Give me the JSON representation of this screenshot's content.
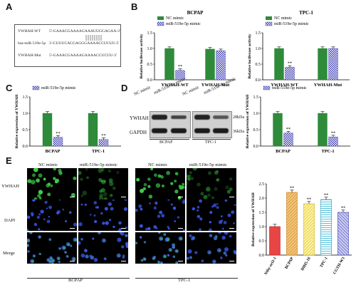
{
  "panels": {
    "A": "A",
    "B": "B",
    "C": "C",
    "D": "D",
    "E": "E"
  },
  "seq": {
    "rows": [
      {
        "label": "YWHAH-WT",
        "seq": "5'-GAAACGAAAAGAAAUUGGAGAA-3'"
      },
      {
        "label": "hsa-miR-519e-5p",
        "seq": "3'-CUUUCACGAGGGAAAACCUCUU-5'"
      },
      {
        "label": "YWHAH-Mut",
        "seq": "5'-GAAACGAAAAGAAAACCUCUU-3'"
      }
    ]
  },
  "legend": {
    "nc": "NC mimic",
    "mir": "miR-519e-5p mimic"
  },
  "colors": {
    "nc": "#2e8b3a",
    "mir": "#3a3ab0"
  },
  "chart_data": [
    {
      "id": "B1",
      "type": "bar",
      "title": "BCPAP",
      "ylabel": "Relative luciferase activity",
      "ylim": [
        0,
        1.5
      ],
      "yticks": [
        "0.0",
        "0.5",
        "1.0",
        "1.5"
      ],
      "categories": [
        "YWHAH-WT",
        "YWHAH-Mut"
      ],
      "series": [
        {
          "name": "NC mimic",
          "values": [
            1.0,
            0.98
          ]
        },
        {
          "name": "miR-519e-5p mimic",
          "values": [
            0.3,
            0.93
          ]
        }
      ],
      "sig": [
        "**",
        ""
      ]
    },
    {
      "id": "B2",
      "type": "bar",
      "title": "TPC-1",
      "ylabel": "Relative luciferase activity",
      "ylim": [
        0,
        1.5
      ],
      "yticks": [
        "0.0",
        "0.5",
        "1.0",
        "1.5"
      ],
      "categories": [
        "YWHAH-WT",
        "YWHAH-Mut"
      ],
      "series": [
        {
          "name": "NC mimic",
          "values": [
            1.0,
            1.0
          ]
        },
        {
          "name": "miR-519e-5p mimic",
          "values": [
            0.4,
            1.0
          ]
        }
      ],
      "sig": [
        "**",
        ""
      ]
    },
    {
      "id": "C",
      "type": "bar",
      "title": "",
      "ylabel": "Relative expression of YWHAH",
      "ylim": [
        0,
        1.5
      ],
      "yticks": [
        "0.0",
        "0.5",
        "1.0",
        "1.5"
      ],
      "categories": [
        "BCPAP",
        "TPC-1"
      ],
      "series": [
        {
          "name": "NC mimic",
          "values": [
            1.0,
            1.0
          ]
        },
        {
          "name": "miR-519e-5p mimic",
          "values": [
            0.27,
            0.2
          ]
        }
      ],
      "sig": [
        "**",
        "**"
      ]
    },
    {
      "id": "D",
      "type": "bar",
      "title": "",
      "ylabel": "Relative expression of YWHAH",
      "ylim": [
        0,
        1.5
      ],
      "yticks": [
        "0.0",
        "0.5",
        "1.0",
        "1.5"
      ],
      "categories": [
        "BCPAP",
        "TPC-1"
      ],
      "series": [
        {
          "name": "NC mimic",
          "values": [
            1.0,
            1.0
          ]
        },
        {
          "name": "miR-519e-5p mimic",
          "values": [
            0.4,
            0.28
          ]
        }
      ],
      "sig": [
        "**",
        "**"
      ]
    },
    {
      "id": "E",
      "type": "bar",
      "title": "",
      "ylabel": "Relative expression of YWHAH",
      "ylim": [
        0,
        2.5
      ],
      "yticks": [
        "0.0",
        "0.5",
        "1.0",
        "1.5",
        "2.0",
        "2.5"
      ],
      "categories": [
        "Nthy-ori3-1",
        "BCPAP",
        "IHH5-16",
        "TPC-1",
        "CGTH-W3"
      ],
      "values": [
        1.0,
        2.2,
        1.8,
        1.95,
        1.5
      ],
      "sig": [
        "",
        "**",
        "**",
        "**",
        "**"
      ]
    }
  ],
  "wb": {
    "lanes": [
      "NC mimic",
      "miR-519e-5p mimic",
      "NC mimic",
      "miR-519e-5p mimic"
    ],
    "rows": [
      {
        "label": "YWHAH",
        "kda": "28kDa"
      },
      {
        "label": "GAPDH",
        "kda": "36kDa"
      }
    ],
    "groups": [
      "BCPAP",
      "TPC-1"
    ]
  },
  "micro": {
    "cols": [
      "NC mimic",
      "miR-519e-5p mimic",
      "NC mimic",
      "miR-519e-5p mimic"
    ],
    "rows": [
      "YWHAH",
      "DAPI",
      "Merge"
    ],
    "groups": [
      "BCPAP",
      "TPC-1"
    ]
  }
}
